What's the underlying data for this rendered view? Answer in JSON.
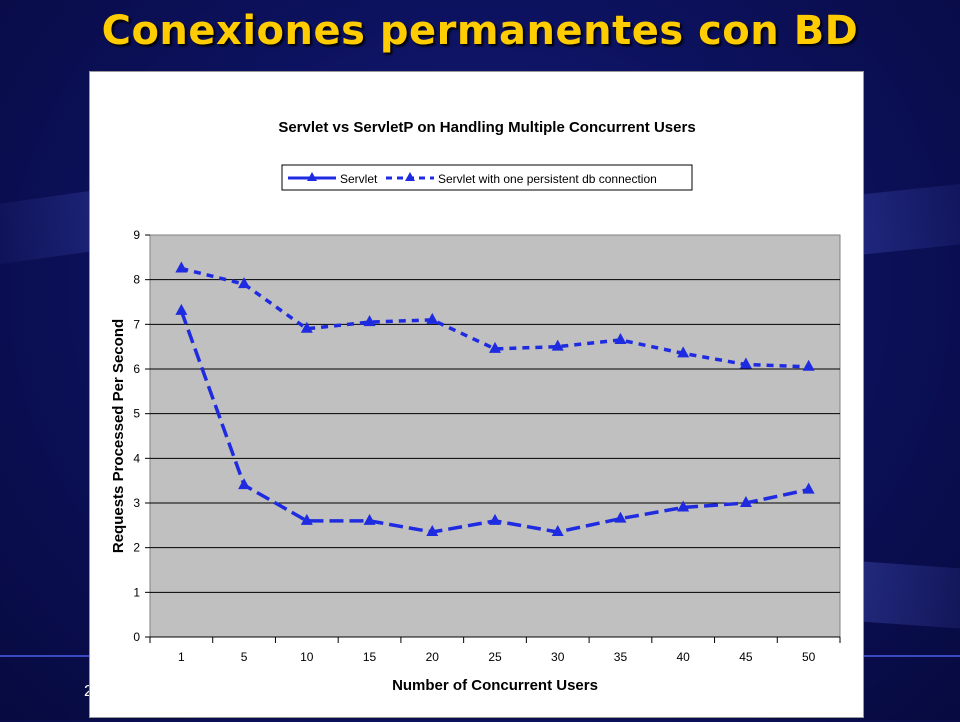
{
  "slide": {
    "title": "Conexiones permanentes con BD",
    "footer_number": "2"
  },
  "colors": {
    "title": "#ffcc00",
    "series": "#1f2be0",
    "plot_background": "#c0c0c0",
    "slide_background": "#0d1260"
  },
  "chart_data": {
    "type": "line",
    "title": "Servlet vs ServletP on Handling Multiple Concurrent Users",
    "xlabel": "Number of Concurrent Users",
    "ylabel": "Requests Processed Per Second",
    "categories": [
      "1",
      "5",
      "10",
      "15",
      "20",
      "25",
      "30",
      "35",
      "40",
      "45",
      "50"
    ],
    "ylim": [
      0,
      9
    ],
    "yticks": [
      "0",
      "1",
      "2",
      "3",
      "4",
      "5",
      "6",
      "7",
      "8",
      "9"
    ],
    "grid": true,
    "legend_position": "top",
    "series": [
      {
        "name": "Servlet",
        "style": "long-dash",
        "values": [
          7.3,
          3.4,
          2.6,
          2.6,
          2.35,
          2.6,
          2.35,
          2.65,
          2.9,
          3.0,
          3.3
        ]
      },
      {
        "name": "Servlet with one persistent db connection",
        "style": "short-dash",
        "values": [
          8.25,
          7.9,
          6.9,
          7.05,
          7.1,
          6.45,
          6.5,
          6.65,
          6.35,
          6.1,
          6.05
        ]
      }
    ]
  }
}
